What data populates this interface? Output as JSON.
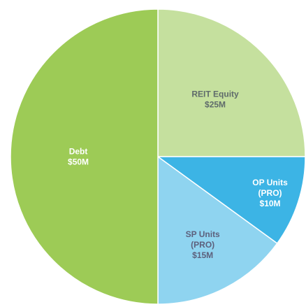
{
  "chart_data": {
    "type": "pie",
    "categories": [
      "REIT Equity",
      "OP Units (PRO)",
      "SP Units (PRO)",
      "Debt"
    ],
    "values": [
      25,
      10,
      15,
      50
    ],
    "value_labels": [
      "$25M",
      "$10M",
      "$15M",
      "$50M"
    ],
    "colors": [
      "#c5e09e",
      "#3cb4e5",
      "#8fd4f0",
      "#9dcb56"
    ]
  }
}
